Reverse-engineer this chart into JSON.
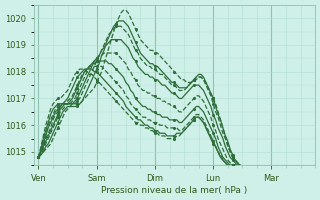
{
  "xlabel": "Pression niveau de la mer( hPa )",
  "ylim": [
    1014.5,
    1020.5
  ],
  "bg_color": "#cff0e8",
  "grid_color": "#b0ddd0",
  "line_color": "#2d6e3a",
  "x_days": [
    "Ven",
    "Sam",
    "Dim",
    "Lun",
    "Mar"
  ],
  "x_day_positions": [
    0,
    24,
    48,
    72,
    96
  ],
  "x_lim": [
    -2,
    114
  ],
  "series": [
    [
      1014.8,
      1014.9,
      1015.0,
      1015.1,
      1015.2,
      1015.3,
      1015.5,
      1015.7,
      1015.9,
      1016.1,
      1016.3,
      1016.5,
      1016.6,
      1016.7,
      1016.8,
      1016.8,
      1016.8,
      1016.8,
      1016.9,
      1017.0,
      1017.1,
      1017.2,
      1017.3,
      1017.4,
      1017.6,
      1017.8,
      1018.0,
      1018.3,
      1018.6,
      1018.9,
      1019.2,
      1019.5,
      1019.8,
      1020.0,
      1020.2,
      1020.3,
      1020.3,
      1020.2,
      1020.0,
      1019.8,
      1019.6,
      1019.4,
      1019.2,
      1019.1,
      1019.0,
      1018.9,
      1018.8,
      1018.8,
      1018.7,
      1018.7,
      1018.6,
      1018.5,
      1018.4,
      1018.3,
      1018.2,
      1018.1,
      1018.0,
      1017.9,
      1017.8,
      1017.7,
      1017.7,
      1017.6,
      1017.6,
      1017.6,
      1017.7,
      1017.7,
      1017.8,
      1017.8,
      1017.7,
      1017.6,
      1017.4,
      1017.2,
      1017.0,
      1016.8,
      1016.5,
      1016.2,
      1015.9,
      1015.6,
      1015.3,
      1015.0,
      1014.8,
      1014.7,
      1014.6,
      1014.5
    ],
    [
      1014.8,
      1014.9,
      1015.0,
      1015.2,
      1015.3,
      1015.5,
      1015.7,
      1015.9,
      1016.1,
      1016.3,
      1016.5,
      1016.6,
      1016.7,
      1016.7,
      1016.7,
      1016.7,
      1016.7,
      1016.8,
      1016.9,
      1017.1,
      1017.3,
      1017.5,
      1017.7,
      1017.9,
      1018.1,
      1018.3,
      1018.6,
      1018.8,
      1019.1,
      1019.3,
      1019.5,
      1019.7,
      1019.8,
      1019.9,
      1019.9,
      1019.9,
      1019.8,
      1019.7,
      1019.5,
      1019.3,
      1019.1,
      1018.9,
      1018.7,
      1018.6,
      1018.5,
      1018.4,
      1018.3,
      1018.3,
      1018.2,
      1018.2,
      1018.1,
      1018.0,
      1017.9,
      1017.8,
      1017.7,
      1017.6,
      1017.6,
      1017.5,
      1017.4,
      1017.4,
      1017.4,
      1017.4,
      1017.5,
      1017.6,
      1017.7,
      1017.8,
      1017.9,
      1017.9,
      1017.8,
      1017.6,
      1017.4,
      1017.2,
      1017.0,
      1016.7,
      1016.4,
      1016.2,
      1015.9,
      1015.6,
      1015.4,
      1015.1,
      1014.9,
      1014.7,
      1014.6,
      1014.5
    ],
    [
      1014.8,
      1014.9,
      1015.1,
      1015.3,
      1015.5,
      1015.7,
      1015.9,
      1016.1,
      1016.3,
      1016.5,
      1016.6,
      1016.7,
      1016.8,
      1016.8,
      1016.8,
      1016.8,
      1016.9,
      1017.0,
      1017.2,
      1017.4,
      1017.6,
      1017.8,
      1018.0,
      1018.2,
      1018.4,
      1018.6,
      1018.8,
      1019.0,
      1019.2,
      1019.4,
      1019.5,
      1019.6,
      1019.7,
      1019.7,
      1019.7,
      1019.6,
      1019.5,
      1019.4,
      1019.2,
      1019.0,
      1018.8,
      1018.7,
      1018.5,
      1018.4,
      1018.3,
      1018.2,
      1018.2,
      1018.1,
      1018.1,
      1018.0,
      1017.9,
      1017.9,
      1017.8,
      1017.7,
      1017.6,
      1017.5,
      1017.5,
      1017.4,
      1017.3,
      1017.3,
      1017.3,
      1017.4,
      1017.5,
      1017.6,
      1017.7,
      1017.8,
      1017.8,
      1017.8,
      1017.7,
      1017.5,
      1017.3,
      1017.1,
      1016.8,
      1016.5,
      1016.3,
      1016.0,
      1015.7,
      1015.5,
      1015.2,
      1015.0,
      1014.8,
      1014.7,
      1014.6,
      1014.5
    ],
    [
      1014.8,
      1015.0,
      1015.2,
      1015.4,
      1015.6,
      1015.8,
      1016.0,
      1016.2,
      1016.4,
      1016.6,
      1016.7,
      1016.8,
      1016.8,
      1016.8,
      1016.8,
      1016.9,
      1017.0,
      1017.2,
      1017.4,
      1017.6,
      1017.8,
      1018.0,
      1018.2,
      1018.4,
      1018.5,
      1018.6,
      1018.8,
      1018.9,
      1019.0,
      1019.1,
      1019.2,
      1019.2,
      1019.2,
      1019.2,
      1019.2,
      1019.1,
      1019.0,
      1018.9,
      1018.7,
      1018.5,
      1018.4,
      1018.2,
      1018.1,
      1018.0,
      1017.9,
      1017.9,
      1017.8,
      1017.8,
      1017.7,
      1017.7,
      1017.6,
      1017.5,
      1017.5,
      1017.4,
      1017.3,
      1017.2,
      1017.2,
      1017.1,
      1017.0,
      1017.0,
      1017.1,
      1017.2,
      1017.3,
      1017.4,
      1017.5,
      1017.5,
      1017.5,
      1017.4,
      1017.3,
      1017.1,
      1016.9,
      1016.7,
      1016.4,
      1016.2,
      1015.9,
      1015.7,
      1015.5,
      1015.2,
      1015.0,
      1014.8,
      1014.7,
      1014.6,
      1014.5,
      1014.5
    ],
    [
      1014.8,
      1015.0,
      1015.2,
      1015.5,
      1015.7,
      1015.9,
      1016.2,
      1016.4,
      1016.5,
      1016.7,
      1016.8,
      1016.8,
      1016.8,
      1016.8,
      1016.9,
      1017.0,
      1017.2,
      1017.4,
      1017.6,
      1017.8,
      1018.0,
      1018.2,
      1018.3,
      1018.4,
      1018.5,
      1018.6,
      1018.6,
      1018.7,
      1018.7,
      1018.7,
      1018.7,
      1018.7,
      1018.7,
      1018.6,
      1018.5,
      1018.4,
      1018.3,
      1018.1,
      1018.0,
      1017.8,
      1017.7,
      1017.5,
      1017.4,
      1017.3,
      1017.3,
      1017.2,
      1017.2,
      1017.1,
      1017.1,
      1017.0,
      1017.0,
      1016.9,
      1016.9,
      1016.8,
      1016.8,
      1016.7,
      1016.7,
      1016.6,
      1016.5,
      1016.5,
      1016.6,
      1016.7,
      1016.8,
      1016.9,
      1017.0,
      1017.1,
      1017.1,
      1017.0,
      1016.9,
      1016.7,
      1016.5,
      1016.3,
      1016.0,
      1015.8,
      1015.5,
      1015.3,
      1015.1,
      1014.9,
      1014.7,
      1014.6,
      1014.5,
      1014.5,
      1014.5,
      1014.5
    ],
    [
      1014.8,
      1015.0,
      1015.3,
      1015.6,
      1015.9,
      1016.1,
      1016.3,
      1016.5,
      1016.6,
      1016.7,
      1016.8,
      1016.8,
      1016.8,
      1016.9,
      1017.0,
      1017.2,
      1017.4,
      1017.6,
      1017.8,
      1018.0,
      1018.1,
      1018.2,
      1018.3,
      1018.3,
      1018.4,
      1018.4,
      1018.4,
      1018.4,
      1018.4,
      1018.3,
      1018.3,
      1018.2,
      1018.1,
      1018.0,
      1017.9,
      1017.8,
      1017.6,
      1017.5,
      1017.3,
      1017.2,
      1017.0,
      1016.9,
      1016.8,
      1016.7,
      1016.7,
      1016.6,
      1016.6,
      1016.5,
      1016.5,
      1016.4,
      1016.4,
      1016.3,
      1016.3,
      1016.3,
      1016.2,
      1016.2,
      1016.2,
      1016.2,
      1016.1,
      1016.1,
      1016.2,
      1016.3,
      1016.4,
      1016.5,
      1016.6,
      1016.7,
      1016.7,
      1016.6,
      1016.5,
      1016.3,
      1016.1,
      1015.9,
      1015.7,
      1015.5,
      1015.2,
      1015.0,
      1014.8,
      1014.7,
      1014.6,
      1014.5,
      1014.5,
      1014.5,
      1014.5,
      1014.5
    ],
    [
      1014.8,
      1015.1,
      1015.4,
      1015.7,
      1016.0,
      1016.2,
      1016.4,
      1016.6,
      1016.7,
      1016.8,
      1016.8,
      1016.8,
      1016.9,
      1017.0,
      1017.1,
      1017.3,
      1017.5,
      1017.7,
      1017.9,
      1018.0,
      1018.1,
      1018.2,
      1018.2,
      1018.2,
      1018.2,
      1018.2,
      1018.2,
      1018.1,
      1018.0,
      1017.9,
      1017.8,
      1017.7,
      1017.6,
      1017.5,
      1017.4,
      1017.3,
      1017.1,
      1017.0,
      1016.8,
      1016.7,
      1016.6,
      1016.5,
      1016.4,
      1016.3,
      1016.3,
      1016.2,
      1016.2,
      1016.1,
      1016.1,
      1016.1,
      1016.0,
      1016.0,
      1016.0,
      1015.9,
      1015.9,
      1015.9,
      1015.9,
      1015.9,
      1015.8,
      1015.8,
      1015.9,
      1016.0,
      1016.1,
      1016.2,
      1016.3,
      1016.4,
      1016.4,
      1016.3,
      1016.2,
      1016.0,
      1015.8,
      1015.6,
      1015.4,
      1015.2,
      1015.0,
      1014.8,
      1014.7,
      1014.6,
      1014.5,
      1014.5,
      1014.5,
      1014.5,
      1014.5,
      1014.5
    ],
    [
      1014.8,
      1015.1,
      1015.5,
      1015.8,
      1016.1,
      1016.4,
      1016.6,
      1016.7,
      1016.8,
      1016.8,
      1016.8,
      1016.9,
      1017.0,
      1017.2,
      1017.4,
      1017.6,
      1017.8,
      1017.9,
      1018.0,
      1018.1,
      1018.1,
      1018.1,
      1018.1,
      1018.0,
      1018.0,
      1017.9,
      1017.8,
      1017.7,
      1017.6,
      1017.5,
      1017.4,
      1017.3,
      1017.2,
      1017.1,
      1017.0,
      1016.9,
      1016.7,
      1016.6,
      1016.5,
      1016.4,
      1016.3,
      1016.2,
      1016.2,
      1016.1,
      1016.0,
      1016.0,
      1015.9,
      1015.9,
      1015.8,
      1015.8,
      1015.7,
      1015.7,
      1015.7,
      1015.6,
      1015.6,
      1015.6,
      1015.6,
      1015.7,
      1015.7,
      1015.7,
      1015.8,
      1015.9,
      1016.0,
      1016.1,
      1016.2,
      1016.3,
      1016.3,
      1016.2,
      1016.1,
      1015.9,
      1015.7,
      1015.5,
      1015.3,
      1015.2,
      1015.0,
      1014.8,
      1014.7,
      1014.6,
      1014.5,
      1014.5,
      1014.5,
      1014.5,
      1014.5,
      1014.5
    ],
    [
      1014.8,
      1015.2,
      1015.6,
      1016.0,
      1016.3,
      1016.6,
      1016.8,
      1016.9,
      1017.0,
      1017.0,
      1017.1,
      1017.2,
      1017.3,
      1017.5,
      1017.7,
      1017.9,
      1018.0,
      1018.1,
      1018.1,
      1018.1,
      1018.0,
      1017.9,
      1017.9,
      1017.8,
      1017.7,
      1017.6,
      1017.5,
      1017.4,
      1017.3,
      1017.2,
      1017.1,
      1017.0,
      1016.9,
      1016.8,
      1016.7,
      1016.6,
      1016.5,
      1016.4,
      1016.3,
      1016.2,
      1016.1,
      1016.1,
      1016.0,
      1016.0,
      1015.9,
      1015.9,
      1015.8,
      1015.8,
      1015.7,
      1015.7,
      1015.6,
      1015.6,
      1015.6,
      1015.5,
      1015.5,
      1015.5,
      1015.5,
      1015.6,
      1015.6,
      1015.7,
      1015.8,
      1015.9,
      1016.0,
      1016.1,
      1016.2,
      1016.3,
      1016.3,
      1016.2,
      1016.1,
      1015.9,
      1015.7,
      1015.6,
      1015.4,
      1015.2,
      1015.0,
      1014.9,
      1014.7,
      1014.6,
      1014.5,
      1014.5,
      1014.5,
      1014.5,
      1014.5,
      1014.5
    ]
  ]
}
